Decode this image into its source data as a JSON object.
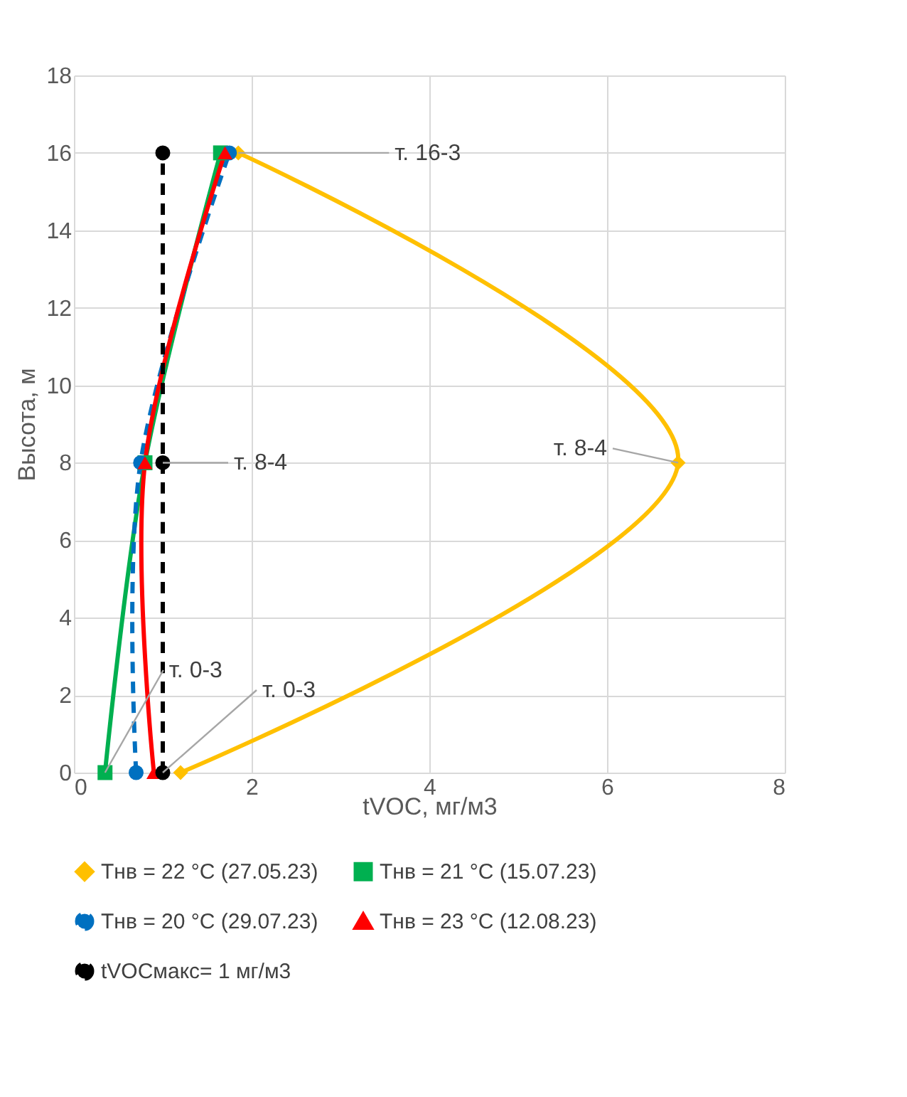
{
  "chart_data": {
    "type": "line",
    "xlabel": "tVOC, мг/м3",
    "ylabel": "Высота, м",
    "xlim": [
      0,
      8
    ],
    "xticks": [
      0,
      2,
      4,
      6,
      8
    ],
    "ylim": [
      0,
      18
    ],
    "yticks": [
      0,
      2,
      4,
      6,
      8,
      10,
      12,
      14,
      16,
      18
    ],
    "grid": true,
    "legend": "bottom",
    "series": [
      {
        "name": "Tнв = 22 °C (27.05.23)",
        "color": "#ffc000",
        "marker": "diamond",
        "line_style": "solid",
        "x": [
          1.2,
          6.8,
          1.85
        ],
        "values": [
          0,
          8,
          16
        ]
      },
      {
        "name": "Tнв =  21 °C (15.07.23)",
        "color": "#00b050",
        "marker": "square",
        "line_style": "solid",
        "x": [
          0.35,
          0.8,
          1.65
        ],
        "values": [
          0,
          8,
          16
        ]
      },
      {
        "name": "Tнв = 20 °C (29.07.23)",
        "color": "#0070c0",
        "marker": "circle",
        "line_style": "dashed",
        "x": [
          0.7,
          0.75,
          1.75
        ],
        "values": [
          0,
          8,
          16
        ]
      },
      {
        "name": "Tнв = 23 °C (12.08.23)",
        "color": "#ff0000",
        "marker": "triangle",
        "line_style": "solid",
        "x": [
          0.9,
          0.8,
          1.7
        ],
        "values": [
          0,
          8,
          16
        ]
      },
      {
        "name": "tVOCмакс= 1 мг/м3",
        "color": "#000000",
        "marker": "circle",
        "line_style": "dashed",
        "x": [
          1,
          1,
          1
        ],
        "values": [
          0,
          8,
          16
        ]
      }
    ],
    "annotations": [
      {
        "text": "т. 16-3",
        "x": 1.85,
        "y": 16
      },
      {
        "text": "т. 8-4",
        "x": 6.8,
        "y": 8
      },
      {
        "text": "т. 8-4",
        "x": 1,
        "y": 8
      },
      {
        "text": "т. 0-3",
        "x": 0.35,
        "y": 0
      },
      {
        "text": "т. 0-3",
        "x": 1,
        "y": 0
      }
    ]
  }
}
